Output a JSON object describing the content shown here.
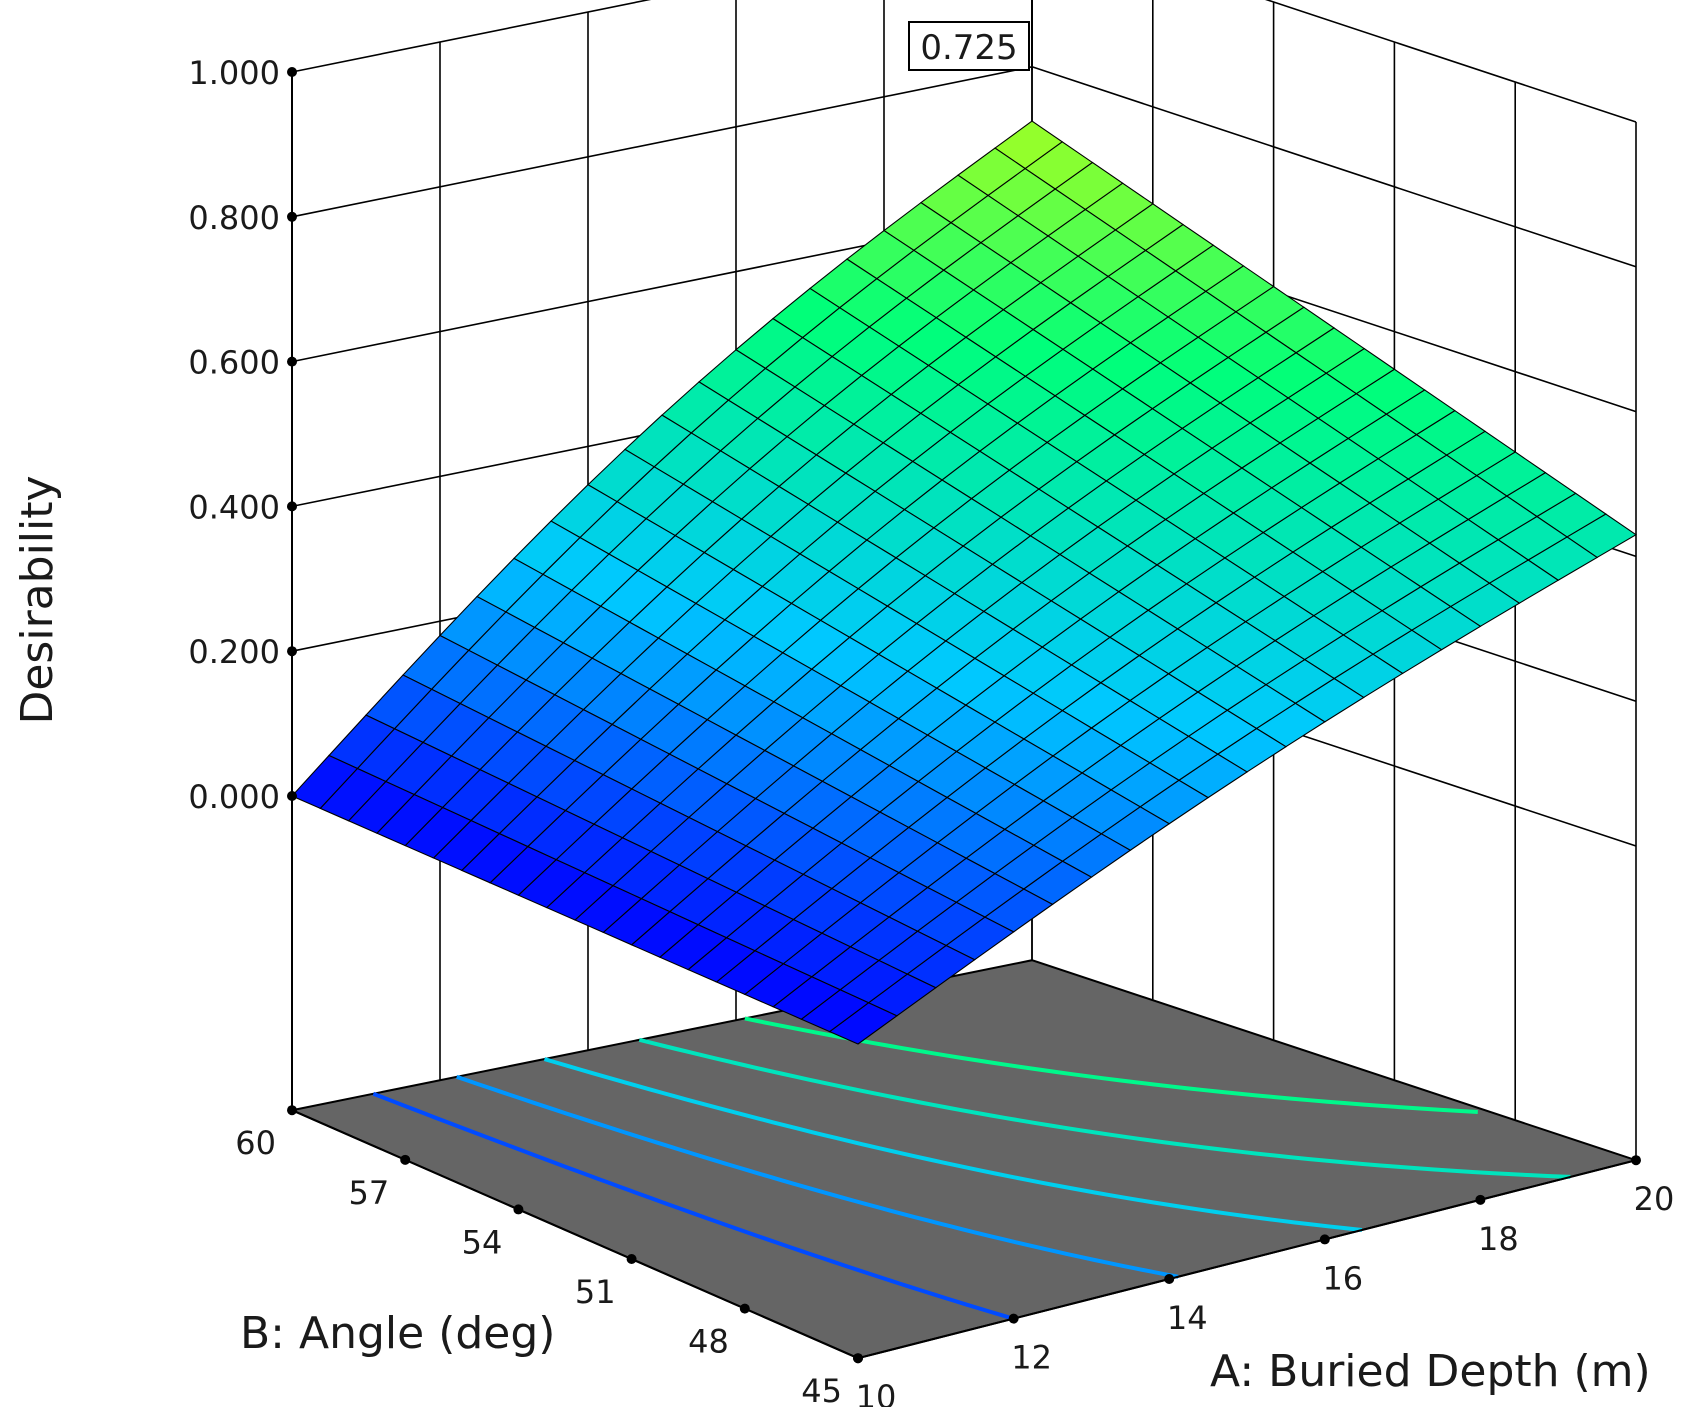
{
  "chart_data": {
    "type": "surface3d",
    "title": "",
    "zlabel": "Desirability",
    "xlabel": "A: Buried Depth (m)",
    "ylabel": "B: Angle (deg)",
    "x_ticks": [
      "10",
      "12",
      "14",
      "16",
      "18",
      "20"
    ],
    "y_ticks": [
      "45",
      "48",
      "51",
      "54",
      "57",
      "60"
    ],
    "z_ticks": [
      "0.000",
      "0.200",
      "0.400",
      "0.600",
      "0.800",
      "1.000"
    ],
    "xlim": [
      10,
      20
    ],
    "ylim": [
      45,
      60
    ],
    "zlim": [
      0,
      1
    ],
    "flag_label": "0.725",
    "grid": true,
    "colormap": [
      "#0000ff",
      "#00c8ff",
      "#00ff7a",
      "#e6ff00"
    ],
    "surface_corners": [
      {
        "x": 10,
        "y": 45,
        "z": 0.0
      },
      {
        "x": 10,
        "y": 60,
        "z": 0.0
      },
      {
        "x": 20,
        "y": 45,
        "z": 0.43
      },
      {
        "x": 20,
        "y": 60,
        "z": 0.725
      }
    ],
    "contour_levels": [
      0.1,
      0.2,
      0.3,
      0.4,
      0.5
    ]
  }
}
